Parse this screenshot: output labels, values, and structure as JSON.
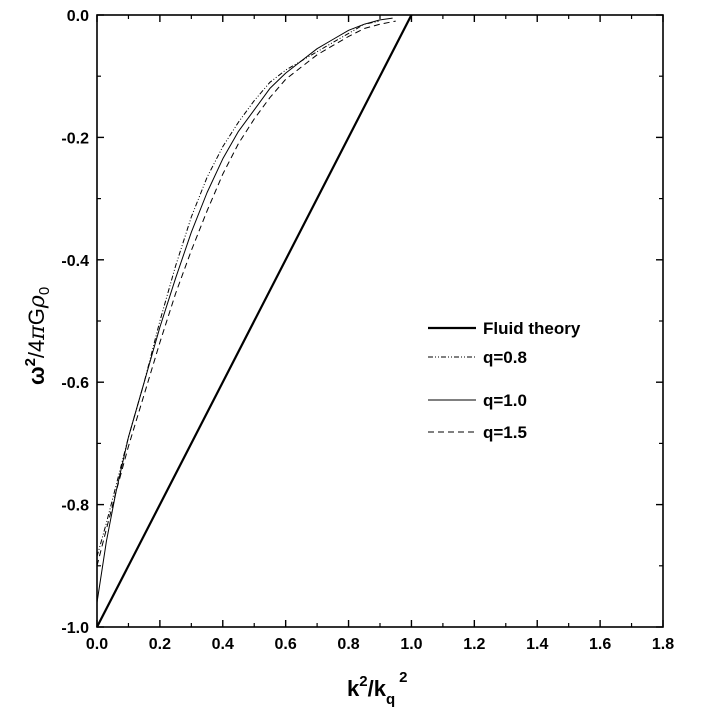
{
  "chart_data": {
    "type": "line",
    "xlabel": {
      "base": "k",
      "sup1": "2",
      "sep": "/k",
      "sub": "q",
      "sup2": "2"
    },
    "ylabel": {
      "omega": "ω",
      "sup": "2",
      "mid": "/4",
      "pi": "π",
      "G": "G",
      "rho": "ρ",
      "sub": "0"
    },
    "xlim": [
      0.0,
      1.8
    ],
    "ylim": [
      -1.0,
      0.0
    ],
    "x_ticks": [
      "0.0",
      "0.2",
      "0.4",
      "0.6",
      "0.8",
      "1.0",
      "1.2",
      "1.4",
      "1.6",
      "1.8"
    ],
    "y_ticks": [
      "0.0",
      "-0.2",
      "-0.4",
      "-0.6",
      "-0.8",
      "-1.0"
    ],
    "x_tick_values": [
      0.0,
      0.2,
      0.4,
      0.6,
      0.8,
      1.0,
      1.2,
      1.4,
      1.6,
      1.8
    ],
    "y_tick_values": [
      0.0,
      -0.2,
      -0.4,
      -0.6,
      -0.8,
      -1.0
    ],
    "grid": false,
    "legend_position": "center-right",
    "series": [
      {
        "name": "Fluid theory",
        "style": "solid-bold",
        "x": [
          0.0,
          1.0
        ],
        "y": [
          -1.0,
          0.0
        ]
      },
      {
        "name": "q=0.8",
        "style": "dash-dot-dot",
        "x": [
          0.0,
          0.03,
          0.06,
          0.1,
          0.15,
          0.2,
          0.25,
          0.3,
          0.35,
          0.4,
          0.45,
          0.5,
          0.55,
          0.6,
          0.65,
          0.7,
          0.75,
          0.8,
          0.85,
          0.9
        ],
        "y": [
          -0.885,
          -0.83,
          -0.77,
          -0.69,
          -0.6,
          -0.5,
          -0.41,
          -0.33,
          -0.265,
          -0.215,
          -0.175,
          -0.14,
          -0.11,
          -0.09,
          -0.075,
          -0.06,
          -0.045,
          -0.03,
          -0.015,
          -0.01
        ]
      },
      {
        "name": "q=1.0",
        "style": "solid-thin",
        "x": [
          0.0,
          0.03,
          0.06,
          0.1,
          0.15,
          0.2,
          0.25,
          0.3,
          0.35,
          0.4,
          0.45,
          0.5,
          0.55,
          0.6,
          0.65,
          0.7,
          0.75,
          0.8,
          0.85,
          0.9,
          0.94
        ],
        "y": [
          -0.96,
          -0.86,
          -0.78,
          -0.69,
          -0.6,
          -0.51,
          -0.43,
          -0.355,
          -0.29,
          -0.235,
          -0.19,
          -0.155,
          -0.12,
          -0.095,
          -0.075,
          -0.055,
          -0.04,
          -0.025,
          -0.015,
          -0.008,
          -0.005
        ]
      },
      {
        "name": "q=1.5",
        "style": "dashed",
        "x": [
          0.0,
          0.03,
          0.06,
          0.1,
          0.15,
          0.2,
          0.25,
          0.3,
          0.35,
          0.4,
          0.45,
          0.5,
          0.55,
          0.6,
          0.65,
          0.7,
          0.75,
          0.8,
          0.85,
          0.9,
          0.95
        ],
        "y": [
          -0.9,
          -0.84,
          -0.78,
          -0.705,
          -0.62,
          -0.535,
          -0.455,
          -0.385,
          -0.32,
          -0.26,
          -0.21,
          -0.17,
          -0.135,
          -0.105,
          -0.085,
          -0.065,
          -0.05,
          -0.035,
          -0.022,
          -0.015,
          -0.01
        ]
      }
    ]
  }
}
